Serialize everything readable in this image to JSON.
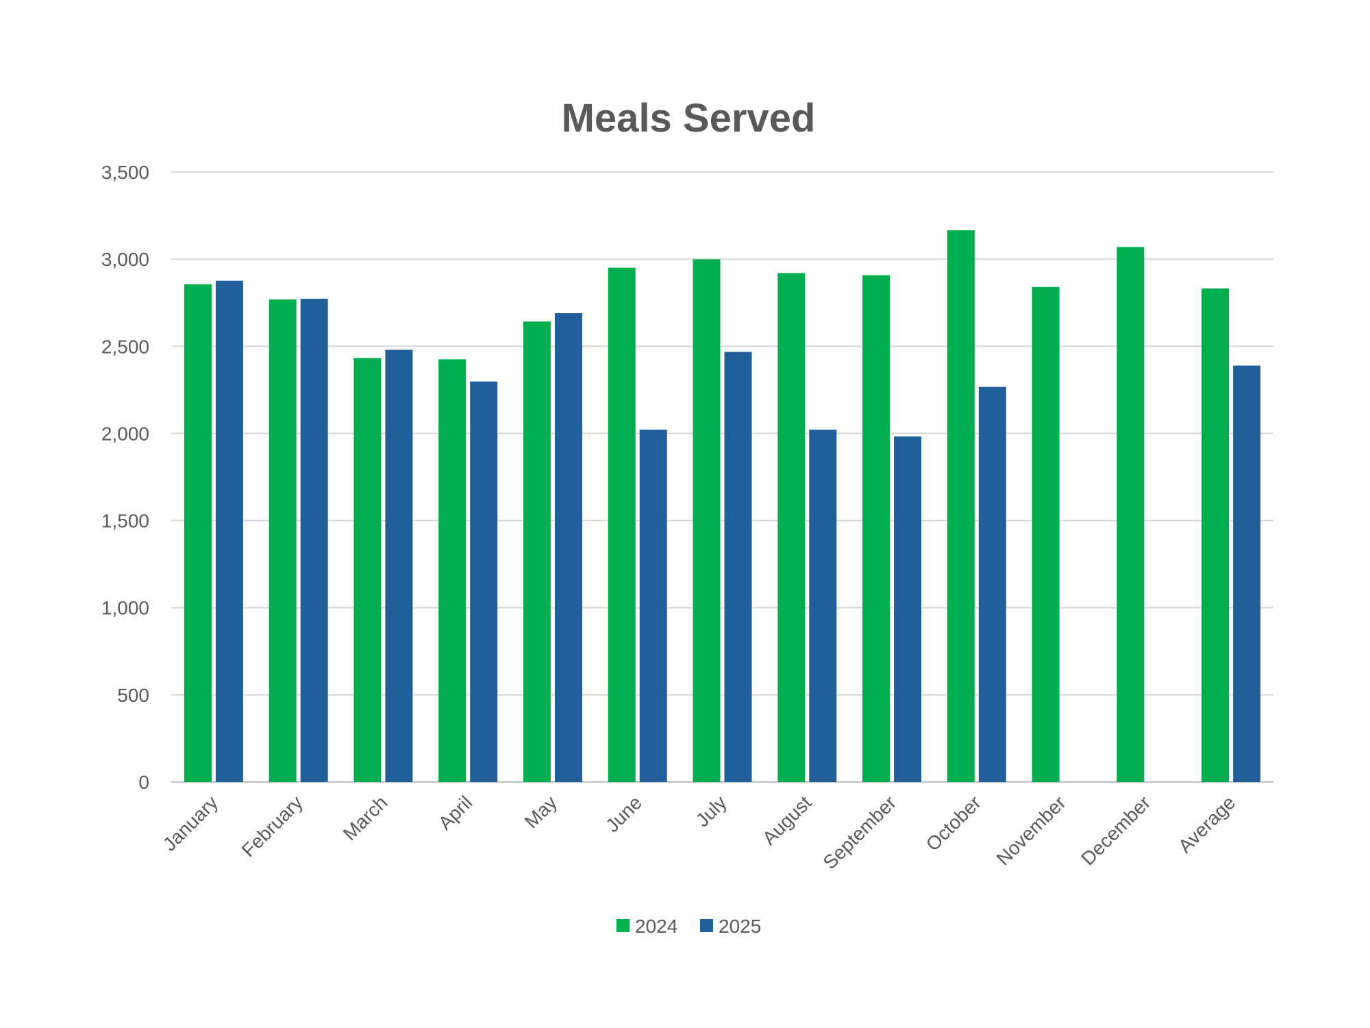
{
  "chart_data": {
    "type": "bar",
    "title": "Meals Served",
    "xlabel": "",
    "ylabel": "",
    "ylim": [
      0,
      3500
    ],
    "yticks": [
      "0",
      "500",
      "1,000",
      "1,500",
      "2,000",
      "2,500",
      "3,000",
      "3,500"
    ],
    "ytick_values": [
      0,
      500,
      1000,
      1500,
      2000,
      2500,
      3000,
      3500
    ],
    "grid": true,
    "legend_position": "bottom",
    "categories": [
      "January",
      "February",
      "March",
      "April",
      "May",
      "June",
      "July",
      "August",
      "September",
      "October",
      "November",
      "December",
      "Average"
    ],
    "series": [
      {
        "name": "2024",
        "color": "#00AD4F",
        "values": [
          2856,
          2769,
          2433,
          2425,
          2642,
          2951,
          2999,
          2920,
          2908,
          3166,
          2840,
          3070,
          2832
        ]
      },
      {
        "name": "2025",
        "color": "#215F9A",
        "values": [
          2876,
          2773,
          2480,
          2298,
          2690,
          2022,
          2468,
          2022,
          1983,
          2267,
          null,
          null,
          2389
        ]
      }
    ]
  }
}
